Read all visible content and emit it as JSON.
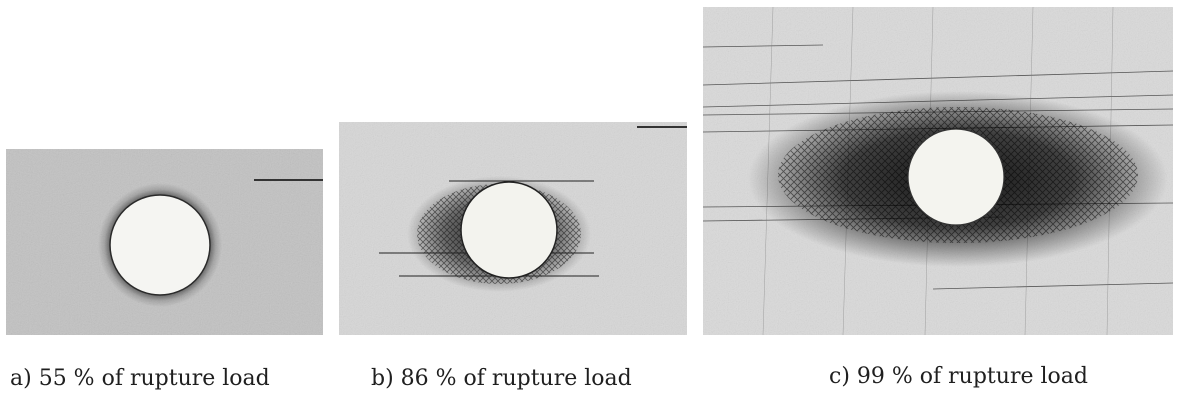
{
  "figure": {
    "panels": [
      {
        "id": "a",
        "caption": "a) 55 % of rupture load"
      },
      {
        "id": "b",
        "caption": "b) 86 % of rupture load"
      },
      {
        "id": "c",
        "caption": "c) 99 % of rupture load"
      }
    ]
  }
}
